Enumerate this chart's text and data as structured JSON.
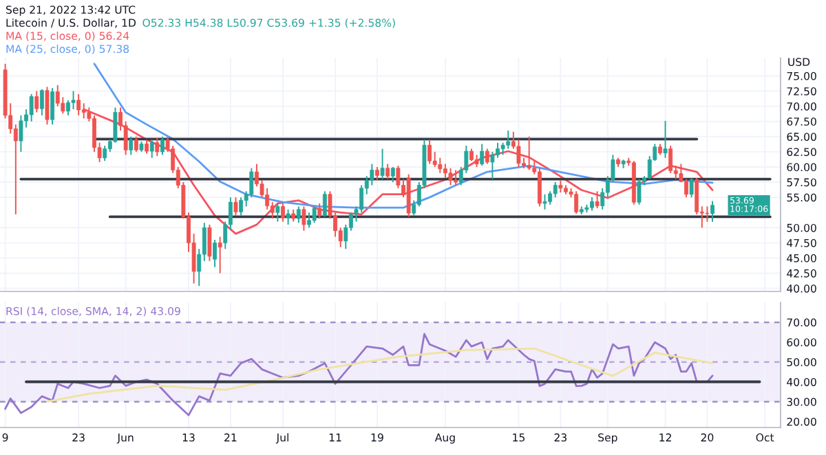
{
  "chart_data": [
    {
      "type": "candlestick",
      "title": "Litecoin / U.S. Dollar, 1D",
      "subtitle": "O52.33 H54.38 L50.97 C53.69 +1.35 (+2.58%)",
      "ylabel": "USD",
      "legend": "top left",
      "tick_labels": "y",
      "grid": true,
      "annotations": [
        "Sep 21, 2022 13:42 UTC",
        {
          "text": "53.69\n10:17:06",
          "x": "2022-09-21",
          "y": 53.69
        }
      ],
      "xlim": [
        "2022-05-08",
        "2022-10-04"
      ],
      "xticks": [
        {
          "value": "2022-05-09",
          "label": null
        },
        {
          "value": "2022-05-23",
          "label": null
        },
        {
          "value": "2022-06-01",
          "label": null
        },
        {
          "value": "2022-06-13",
          "label": null
        },
        {
          "value": "2022-06-21",
          "label": null
        },
        {
          "value": "2022-07-01",
          "label": null
        },
        {
          "value": "2022-07-11",
          "label": null
        },
        {
          "value": "2022-07-19",
          "label": null
        },
        {
          "value": "2022-08-01",
          "label": null
        },
        {
          "value": "2022-08-15",
          "label": null
        },
        {
          "value": "2022-08-23",
          "label": null
        },
        {
          "value": "2022-09-01",
          "label": null
        },
        {
          "value": "2022-09-12",
          "label": null
        },
        {
          "value": "2022-09-20",
          "label": null
        },
        {
          "value": "2022-10-01",
          "label": null
        }
      ],
      "ylim": [
        39.5,
        78
      ],
      "yticks": [
        {
          "value": 40,
          "label": "40.00"
        },
        {
          "value": 42.5,
          "label": "42.50"
        },
        {
          "value": 45,
          "label": "45.00"
        },
        {
          "value": 47.5,
          "label": "47.50"
        },
        {
          "value": 50,
          "label": "50.00"
        },
        {
          "value": 55,
          "label": "55.00"
        },
        {
          "value": 57.5,
          "label": "57.50"
        },
        {
          "value": 60,
          "label": "60.00"
        },
        {
          "value": 62.5,
          "label": "62.50"
        },
        {
          "value": 65,
          "label": "65.00"
        },
        {
          "value": 67.5,
          "label": "67.50"
        },
        {
          "value": 70,
          "label": "70.00"
        },
        {
          "value": 72.5,
          "label": "72.50"
        },
        {
          "value": 75,
          "label": "75.00"
        }
      ],
      "x": [
        "2022-05-09",
        "2022-05-10",
        "2022-05-11",
        "2022-05-12",
        "2022-05-13",
        "2022-05-14",
        "2022-05-15",
        "2022-05-16",
        "2022-05-17",
        "2022-05-18",
        "2022-05-19",
        "2022-05-20",
        "2022-05-21",
        "2022-05-22",
        "2022-05-23",
        "2022-05-24",
        "2022-05-25",
        "2022-05-26",
        "2022-05-27",
        "2022-05-28",
        "2022-05-29",
        "2022-05-30",
        "2022-05-31",
        "2022-06-01",
        "2022-06-02",
        "2022-06-03",
        "2022-06-04",
        "2022-06-05",
        "2022-06-06",
        "2022-06-07",
        "2022-06-08",
        "2022-06-09",
        "2022-06-10",
        "2022-06-11",
        "2022-06-12",
        "2022-06-13",
        "2022-06-14",
        "2022-06-15",
        "2022-06-16",
        "2022-06-17",
        "2022-06-18",
        "2022-06-19",
        "2022-06-20",
        "2022-06-21",
        "2022-06-22",
        "2022-06-23",
        "2022-06-24",
        "2022-06-25",
        "2022-06-26",
        "2022-06-27",
        "2022-06-28",
        "2022-06-29",
        "2022-06-30",
        "2022-07-01",
        "2022-07-02",
        "2022-07-03",
        "2022-07-04",
        "2022-07-05",
        "2022-07-06",
        "2022-07-07",
        "2022-07-08",
        "2022-07-09",
        "2022-07-10",
        "2022-07-11",
        "2022-07-12",
        "2022-07-13",
        "2022-07-14",
        "2022-07-15",
        "2022-07-16",
        "2022-07-17",
        "2022-07-18",
        "2022-07-19",
        "2022-07-20",
        "2022-07-21",
        "2022-07-22",
        "2022-07-23",
        "2022-07-24",
        "2022-07-25",
        "2022-07-26",
        "2022-07-27",
        "2022-07-28",
        "2022-07-29",
        "2022-07-30",
        "2022-07-31",
        "2022-08-01",
        "2022-08-02",
        "2022-08-03",
        "2022-08-04",
        "2022-08-05",
        "2022-08-06",
        "2022-08-07",
        "2022-08-08",
        "2022-08-09",
        "2022-08-10",
        "2022-08-11",
        "2022-08-12",
        "2022-08-13",
        "2022-08-14",
        "2022-08-15",
        "2022-08-16",
        "2022-08-17",
        "2022-08-18",
        "2022-08-19",
        "2022-08-20",
        "2022-08-21",
        "2022-08-22",
        "2022-08-23",
        "2022-08-24",
        "2022-08-25",
        "2022-08-26",
        "2022-08-27",
        "2022-08-28",
        "2022-08-29",
        "2022-08-30",
        "2022-08-31",
        "2022-09-01",
        "2022-09-02",
        "2022-09-03",
        "2022-09-04",
        "2022-09-05",
        "2022-09-06",
        "2022-09-07",
        "2022-09-08",
        "2022-09-09",
        "2022-09-10",
        "2022-09-11",
        "2022-09-12",
        "2022-09-13",
        "2022-09-14",
        "2022-09-15",
        "2022-09-16",
        "2022-09-17",
        "2022-09-18",
        "2022-09-19",
        "2022-09-20",
        "2022-09-21"
      ],
      "ohlc": [
        [
          76.0,
          77.0,
          68.0,
          68.5
        ],
        [
          68.5,
          70.5,
          65.5,
          66.3
        ],
        [
          66.3,
          67.0,
          52.2,
          64.3
        ],
        [
          64.3,
          68.5,
          62.5,
          67.6
        ],
        [
          67.6,
          69.5,
          66.5,
          68.6
        ],
        [
          68.6,
          72.0,
          67.5,
          71.6
        ],
        [
          71.6,
          72.5,
          69.0,
          69.6
        ],
        [
          69.6,
          72.8,
          68.5,
          72.6
        ],
        [
          72.6,
          73.2,
          67.0,
          67.8
        ],
        [
          67.8,
          73.0,
          67.0,
          72.4
        ],
        [
          72.4,
          73.5,
          70.0,
          70.5
        ],
        [
          70.5,
          71.5,
          68.8,
          69.2
        ],
        [
          69.2,
          71.0,
          68.5,
          70.6
        ],
        [
          70.6,
          72.5,
          69.5,
          71.0
        ],
        [
          71.0,
          72.0,
          68.5,
          69.4
        ],
        [
          69.4,
          70.5,
          68.0,
          69.0
        ],
        [
          69.0,
          69.8,
          67.5,
          68.0
        ],
        [
          68.0,
          68.5,
          62.5,
          63.2
        ],
        [
          63.2,
          64.0,
          60.8,
          61.5
        ],
        [
          61.5,
          63.5,
          61.0,
          63.0
        ],
        [
          63.0,
          64.5,
          62.5,
          64.2
        ],
        [
          64.2,
          69.8,
          64.0,
          69.0
        ],
        [
          69.0,
          69.8,
          66.0,
          66.8
        ],
        [
          66.8,
          67.5,
          62.0,
          62.8
        ],
        [
          62.8,
          65.0,
          62.0,
          64.5
        ],
        [
          64.5,
          65.0,
          62.5,
          62.8
        ],
        [
          62.8,
          64.2,
          62.5,
          63.8
        ],
        [
          63.8,
          64.5,
          62.2,
          62.6
        ],
        [
          62.6,
          64.5,
          61.5,
          64.0
        ],
        [
          64.0,
          64.8,
          61.8,
          62.5
        ],
        [
          62.5,
          65.0,
          62.0,
          64.5
        ],
        [
          64.5,
          65.0,
          62.5,
          63.0
        ],
        [
          63.0,
          63.5,
          59.0,
          59.5
        ],
        [
          59.5,
          60.0,
          56.5,
          57.0
        ],
        [
          57.0,
          57.5,
          51.5,
          51.8
        ],
        [
          51.8,
          52.5,
          46.0,
          47.5
        ],
        [
          47.5,
          49.0,
          40.8,
          42.8
        ],
        [
          42.8,
          46.5,
          40.4,
          45.6
        ],
        [
          45.6,
          50.8,
          44.5,
          50.0
        ],
        [
          50.0,
          50.5,
          44.5,
          45.3
        ],
        [
          44.8,
          48.0,
          43.5,
          47.5
        ],
        [
          47.5,
          48.5,
          42.5,
          46.8
        ],
        [
          47.5,
          51.0,
          46.5,
          50.5
        ],
        [
          50.5,
          55.0,
          49.8,
          54.2
        ],
        [
          54.2,
          55.0,
          52.0,
          52.6
        ],
        [
          52.6,
          55.0,
          52.0,
          54.5
        ],
        [
          54.5,
          56.0,
          53.5,
          55.5
        ],
        [
          55.5,
          59.8,
          55.0,
          59.2
        ],
        [
          59.2,
          60.5,
          56.8,
          57.2
        ],
        [
          57.2,
          57.8,
          55.0,
          55.4
        ],
        [
          55.4,
          56.5,
          53.0,
          53.6
        ],
        [
          53.6,
          54.2,
          51.5,
          52.5
        ],
        [
          52.5,
          54.0,
          51.0,
          53.5
        ],
        [
          53.5,
          54.0,
          51.0,
          51.6
        ],
        [
          51.6,
          53.0,
          50.5,
          52.3
        ],
        [
          52.3,
          53.0,
          51.0,
          51.5
        ],
        [
          51.5,
          53.5,
          50.8,
          53.0
        ],
        [
          53.0,
          53.5,
          49.5,
          50.5
        ],
        [
          50.5,
          52.5,
          50.0,
          51.2
        ],
        [
          51.2,
          53.5,
          50.8,
          53.2
        ],
        [
          53.2,
          54.0,
          51.5,
          52.0
        ],
        [
          52.0,
          56.0,
          51.8,
          55.5
        ],
        [
          55.5,
          56.0,
          51.5,
          52.0
        ],
        [
          52.0,
          52.5,
          48.5,
          49.5
        ],
        [
          49.5,
          50.0,
          46.8,
          47.8
        ],
        [
          47.8,
          50.5,
          46.5,
          50.0
        ],
        [
          50.0,
          52.5,
          49.5,
          52.2
        ],
        [
          52.2,
          53.5,
          51.0,
          53.0
        ],
        [
          53.0,
          57.0,
          52.5,
          56.5
        ],
        [
          56.5,
          58.5,
          55.5,
          57.8
        ],
        [
          57.8,
          60.5,
          57.0,
          59.5
        ],
        [
          59.5,
          60.0,
          57.8,
          58.6
        ],
        [
          58.6,
          63.0,
          58.0,
          59.8
        ],
        [
          59.8,
          60.5,
          58.0,
          58.5
        ],
        [
          58.5,
          60.0,
          57.5,
          59.8
        ],
        [
          59.8,
          60.2,
          56.5,
          57.0
        ],
        [
          57.0,
          58.0,
          55.0,
          55.4
        ],
        [
          58.2,
          58.8,
          51.8,
          52.4
        ],
        [
          52.4,
          54.5,
          52.0,
          53.8
        ],
        [
          53.8,
          57.5,
          53.5,
          57.0
        ],
        [
          57.0,
          64.5,
          56.5,
          63.6
        ],
        [
          63.6,
          64.5,
          60.5,
          61.0
        ],
        [
          61.0,
          62.5,
          60.0,
          60.4
        ],
        [
          60.4,
          61.5,
          59.0,
          59.7
        ],
        [
          59.7,
          60.5,
          58.2,
          59.0
        ],
        [
          59.0,
          59.8,
          57.0,
          57.8
        ],
        [
          57.8,
          59.5,
          57.0,
          57.5
        ],
        [
          57.5,
          60.0,
          57.0,
          59.5
        ],
        [
          59.5,
          63.5,
          59.0,
          62.6
        ],
        [
          62.6,
          63.0,
          61.0,
          61.2
        ],
        [
          61.2,
          62.0,
          60.0,
          60.5
        ],
        [
          60.5,
          63.8,
          60.2,
          62.6
        ],
        [
          62.6,
          63.0,
          60.5,
          60.8
        ],
        [
          60.8,
          62.5,
          58.0,
          62.0
        ],
        [
          62.0,
          64.0,
          61.5,
          63.0
        ],
        [
          63.0,
          64.0,
          62.0,
          63.6
        ],
        [
          63.6,
          66.0,
          63.0,
          64.2
        ],
        [
          64.2,
          65.8,
          63.0,
          63.4
        ],
        [
          63.4,
          64.5,
          60.0,
          60.6
        ],
        [
          60.6,
          61.5,
          59.8,
          60.2
        ],
        [
          60.2,
          65.0,
          59.5,
          59.8
        ],
        [
          59.8,
          61.0,
          58.8,
          59.2
        ],
        [
          59.2,
          59.8,
          53.5,
          54.0
        ],
        [
          54.0,
          55.5,
          53.0,
          54.3
        ],
        [
          54.3,
          56.0,
          53.8,
          55.6
        ],
        [
          55.6,
          57.5,
          55.0,
          57.0
        ],
        [
          57.0,
          57.8,
          55.8,
          56.5
        ],
        [
          56.5,
          57.0,
          55.5,
          55.9
        ],
        [
          55.9,
          56.5,
          55.0,
          55.5
        ],
        [
          55.5,
          56.0,
          52.3,
          52.6
        ],
        [
          52.6,
          53.5,
          52.2,
          53.0
        ],
        [
          53.0,
          53.8,
          52.5,
          53.3
        ],
        [
          53.3,
          55.0,
          52.8,
          54.3
        ],
        [
          54.3,
          56.0,
          53.2,
          53.6
        ],
        [
          53.6,
          56.5,
          53.0,
          55.8
        ],
        [
          55.8,
          58.5,
          55.0,
          57.9
        ],
        [
          57.9,
          62.0,
          57.5,
          61.2
        ],
        [
          61.2,
          61.5,
          60.0,
          60.5
        ],
        [
          60.5,
          61.2,
          59.8,
          61.0
        ],
        [
          61.0,
          61.5,
          60.2,
          60.7
        ],
        [
          60.7,
          61.0,
          53.8,
          54.2
        ],
        [
          54.2,
          58.0,
          53.8,
          57.6
        ],
        [
          57.6,
          58.5,
          57.0,
          58.2
        ],
        [
          58.2,
          61.8,
          58.0,
          61.2
        ],
        [
          61.2,
          63.8,
          61.0,
          63.3
        ],
        [
          63.3,
          63.8,
          62.0,
          62.3
        ],
        [
          62.3,
          67.6,
          61.5,
          63.0
        ],
        [
          63.0,
          63.5,
          59.0,
          59.4
        ],
        [
          59.4,
          60.2,
          58.0,
          58.9
        ],
        [
          58.9,
          60.5,
          57.5,
          57.6
        ],
        [
          57.6,
          58.0,
          55.0,
          55.5
        ],
        [
          55.5,
          58.2,
          55.0,
          57.9
        ],
        [
          57.9,
          58.2,
          52.2,
          52.6
        ],
        [
          52.6,
          53.5,
          50.0,
          52.4
        ],
        [
          52.4,
          53.5,
          51.0,
          52.33
        ],
        [
          52.33,
          54.38,
          50.97,
          53.69
        ]
      ],
      "colors": [
        "#ef5350",
        "#ef5350",
        "#ef5350",
        "#26a69a",
        "#26a69a",
        "#26a69a",
        "#ef5350",
        "#26a69a",
        "#ef5350",
        "#26a69a",
        "#ef5350",
        "#ef5350",
        "#26a69a",
        "#26a69a",
        "#ef5350",
        "#ef5350",
        "#ef5350",
        "#ef5350",
        "#ef5350",
        "#26a69a",
        "#26a69a",
        "#26a69a",
        "#ef5350",
        "#ef5350",
        "#26a69a",
        "#ef5350",
        "#26a69a",
        "#ef5350",
        "#26a69a",
        "#ef5350",
        "#26a69a",
        "#ef5350",
        "#ef5350",
        "#ef5350",
        "#ef5350",
        "#ef5350",
        "#ef5350",
        "#26a69a",
        "#26a69a",
        "#ef5350",
        "#26a69a",
        "#ef5350",
        "#26a69a",
        "#26a69a",
        "#ef5350",
        "#26a69a",
        "#26a69a",
        "#26a69a",
        "#ef5350",
        "#ef5350",
        "#ef5350",
        "#ef5350",
        "#26a69a",
        "#ef5350",
        "#26a69a",
        "#ef5350",
        "#26a69a",
        "#ef5350",
        "#26a69a",
        "#26a69a",
        "#ef5350",
        "#26a69a",
        "#ef5350",
        "#ef5350",
        "#ef5350",
        "#26a69a",
        "#26a69a",
        "#26a69a",
        "#26a69a",
        "#26a69a",
        "#26a69a",
        "#ef5350",
        "#26a69a",
        "#ef5350",
        "#26a69a",
        "#ef5350",
        "#ef5350",
        "#ef5350",
        "#26a69a",
        "#26a69a",
        "#26a69a",
        "#ef5350",
        "#ef5350",
        "#ef5350",
        "#ef5350",
        "#ef5350",
        "#ef5350",
        "#26a69a",
        "#26a69a",
        "#ef5350",
        "#ef5350",
        "#26a69a",
        "#ef5350",
        "#26a69a",
        "#26a69a",
        "#26a69a",
        "#26a69a",
        "#ef5350",
        "#ef5350",
        "#ef5350",
        "#ef5350",
        "#ef5350",
        "#ef5350",
        "#26a69a",
        "#26a69a",
        "#26a69a",
        "#ef5350",
        "#ef5350",
        "#ef5350",
        "#ef5350",
        "#26a69a",
        "#26a69a",
        "#26a69a",
        "#ef5350",
        "#26a69a",
        "#26a69a",
        "#26a69a",
        "#ef5350",
        "#26a69a",
        "#ef5350",
        "#ef5350",
        "#26a69a",
        "#26a69a",
        "#26a69a",
        "#26a69a",
        "#ef5350",
        "#26a69a",
        "#ef5350",
        "#ef5350",
        "#ef5350",
        "#ef5350",
        "#26a69a",
        "#ef5350",
        "#ef5350",
        "#ef5350",
        "#26a69a"
      ],
      "series": [
        {
          "type": "line",
          "name": "MA (15, close, 0) 56.24",
          "color": "#f7525f",
          "x": [
            "2022-05-24",
            "2022-05-31",
            "2022-06-05",
            "2022-06-10",
            "2022-06-14",
            "2022-06-18",
            "2022-06-22",
            "2022-06-26",
            "2022-06-30",
            "2022-07-04",
            "2022-07-08",
            "2022-07-12",
            "2022-07-16",
            "2022-07-20",
            "2022-07-24",
            "2022-08-01",
            "2022-08-08",
            "2022-08-13",
            "2022-08-17",
            "2022-08-22",
            "2022-08-27",
            "2022-09-01",
            "2022-09-08",
            "2022-09-13",
            "2022-09-18",
            "2022-09-21"
          ],
          "values": [
            69.5,
            67.0,
            64.5,
            62.5,
            57.0,
            52.0,
            49.0,
            50.5,
            54.0,
            54.5,
            53.0,
            52.5,
            52.2,
            55.5,
            55.5,
            57.9,
            61.5,
            62.6,
            61.6,
            59.0,
            56.2,
            54.9,
            57.6,
            60.2,
            59.2,
            56.2
          ]
        },
        {
          "type": "line",
          "name": "MA (25, close, 0) 57.38",
          "color": "#5b9cf6",
          "x": [
            "2022-05-26",
            "2022-06-01",
            "2022-06-05",
            "2022-06-10",
            "2022-06-15",
            "2022-06-19",
            "2022-06-24",
            "2022-07-01",
            "2022-07-08",
            "2022-07-15",
            "2022-07-24",
            "2022-07-29",
            "2022-08-03",
            "2022-08-09",
            "2022-08-17",
            "2022-08-24",
            "2022-09-01",
            "2022-09-08",
            "2022-09-14",
            "2022-09-21"
          ],
          "values": [
            77.0,
            69.0,
            67.0,
            64.6,
            60.9,
            57.6,
            55.5,
            54.2,
            53.5,
            53.3,
            53.3,
            55.0,
            57.0,
            59.2,
            60.2,
            59.0,
            57.6,
            57.2,
            57.9,
            57.4
          ]
        },
        {
          "type": "line",
          "color": "#363a45",
          "x": [
            "2022-05-26",
            "2022-09-18"
          ],
          "values": [
            64.6,
            64.6
          ]
        },
        {
          "type": "line",
          "color": "#363a45",
          "x": [
            "2022-05-12",
            "2022-10-02"
          ],
          "values": [
            58.0,
            58.0
          ]
        },
        {
          "type": "line",
          "color": "#363a45",
          "x": [
            "2022-05-29",
            "2022-10-02"
          ],
          "values": [
            51.8,
            51.8
          ]
        }
      ]
    },
    {
      "type": "line",
      "legend": "top left",
      "grid": "x",
      "xlim": [
        "2022-05-08",
        "2022-10-04"
      ],
      "xticks": [
        {
          "value": "2022-05-09",
          "label": "9"
        },
        {
          "value": "2022-05-23",
          "label": "23"
        },
        {
          "value": "2022-06-01",
          "label": "Jun"
        },
        {
          "value": "2022-06-13",
          "label": "13"
        },
        {
          "value": "2022-06-21",
          "label": "21"
        },
        {
          "value": "2022-07-01",
          "label": "Jul"
        },
        {
          "value": "2022-07-11",
          "label": "11"
        },
        {
          "value": "2022-07-19",
          "label": "19"
        },
        {
          "value": "2022-08-01",
          "label": "Aug"
        },
        {
          "value": "2022-08-15",
          "label": "15"
        },
        {
          "value": "2022-08-23",
          "label": "23"
        },
        {
          "value": "2022-09-01",
          "label": "Sep"
        },
        {
          "value": "2022-09-12",
          "label": "12"
        },
        {
          "value": "2022-09-20",
          "label": "20"
        },
        {
          "value": "2022-10-01",
          "label": "Oct"
        }
      ],
      "ylim": [
        17,
        80
      ],
      "yticks": [
        {
          "value": 20,
          "label": "20.00"
        },
        {
          "value": 30,
          "label": "30.00"
        },
        {
          "value": 40,
          "label": "40.00"
        },
        {
          "value": 50,
          "label": "50.00"
        },
        {
          "value": 60,
          "label": "60.00"
        },
        {
          "value": 70,
          "label": "70.00"
        }
      ],
      "bands": [
        {
          "axis": "y",
          "from": 30,
          "to": 70,
          "color": "#f1edfa"
        }
      ],
      "ref_lines": [
        {
          "axis": "y",
          "value": 70,
          "color": "#9d90c8",
          "line_style": "dashed"
        },
        {
          "axis": "y",
          "value": 50,
          "color": "#b7acd8",
          "line_style": "dashed"
        },
        {
          "axis": "y",
          "value": 30,
          "color": "#9d90c8",
          "line_style": "dashed"
        }
      ],
      "series": [
        {
          "type": "line",
          "name": "RSI (14, close, SMA, 14, 2) 43.09",
          "color": "#9575cd",
          "x": [
            "2022-05-09",
            "2022-05-10",
            "2022-05-12",
            "2022-05-14",
            "2022-05-16",
            "2022-05-18",
            "2022-05-19",
            "2022-05-21",
            "2022-05-22",
            "2022-05-24",
            "2022-05-27",
            "2022-05-29",
            "2022-05-30",
            "2022-06-01",
            "2022-06-03",
            "2022-06-05",
            "2022-06-07",
            "2022-06-10",
            "2022-06-13",
            "2022-06-15",
            "2022-06-17",
            "2022-06-19",
            "2022-06-21",
            "2022-06-23",
            "2022-06-25",
            "2022-06-27",
            "2022-06-29",
            "2022-07-01",
            "2022-07-04",
            "2022-07-06",
            "2022-07-09",
            "2022-07-11",
            "2022-07-14",
            "2022-07-17",
            "2022-07-20",
            "2022-07-22",
            "2022-07-24",
            "2022-07-25",
            "2022-07-27",
            "2022-07-28",
            "2022-07-29",
            "2022-08-01",
            "2022-08-03",
            "2022-08-05",
            "2022-08-06",
            "2022-08-08",
            "2022-08-09",
            "2022-08-10",
            "2022-08-12",
            "2022-08-13",
            "2022-08-16",
            "2022-08-17",
            "2022-08-18",
            "2022-08-19",
            "2022-08-20",
            "2022-08-22",
            "2022-08-24",
            "2022-08-25",
            "2022-08-26",
            "2022-08-27",
            "2022-08-28",
            "2022-08-29",
            "2022-08-30",
            "2022-08-31",
            "2022-09-02",
            "2022-09-03",
            "2022-09-05",
            "2022-09-06",
            "2022-09-07",
            "2022-09-08",
            "2022-09-10",
            "2022-09-12",
            "2022-09-13",
            "2022-09-14",
            "2022-09-15",
            "2022-09-16",
            "2022-09-17",
            "2022-09-18",
            "2022-09-19",
            "2022-09-20",
            "2022-09-21"
          ],
          "values": [
            26.4,
            31.6,
            24.3,
            27.4,
            32.7,
            30.6,
            39.0,
            36.9,
            40.0,
            39.0,
            36.9,
            38.0,
            43.1,
            38.0,
            40.0,
            41.1,
            39.0,
            30.6,
            23.2,
            32.7,
            30.6,
            44.2,
            43.1,
            49.4,
            51.5,
            46.3,
            44.2,
            42.1,
            43.1,
            45.2,
            49.4,
            39.0,
            48.4,
            57.8,
            56.8,
            53.6,
            57.8,
            48.4,
            48.4,
            64.1,
            58.9,
            55.7,
            52.6,
            61.0,
            57.8,
            59.9,
            51.5,
            56.8,
            57.8,
            61.0,
            53.6,
            51.5,
            50.5,
            37.9,
            39.0,
            46.3,
            45.2,
            45.2,
            37.9,
            38.0,
            39.0,
            46.3,
            42.1,
            44.2,
            58.9,
            56.8,
            57.8,
            43.1,
            49.4,
            51.5,
            59.9,
            56.8,
            51.5,
            53.6,
            45.2,
            45.2,
            49.4,
            40.0,
            40.0,
            40.0,
            43.1
          ]
        },
        {
          "type": "line",
          "color": "#f0e3a0",
          "x": [
            "2022-05-17",
            "2022-05-25",
            "2022-06-07",
            "2022-06-20",
            "2022-07-01",
            "2022-07-08",
            "2022-07-23",
            "2022-08-05",
            "2022-08-18",
            "2022-08-27",
            "2022-09-02",
            "2022-09-10",
            "2022-09-21"
          ],
          "values": [
            30.0,
            34.0,
            38.0,
            36.0,
            42.0,
            46.3,
            52.6,
            56.0,
            56.8,
            48.4,
            43.0,
            54.7,
            49.4
          ]
        },
        {
          "type": "line",
          "color": "#363a45",
          "x": [
            "2022-05-13",
            "2022-09-30"
          ],
          "values": [
            40.0,
            40.0
          ]
        }
      ]
    }
  ]
}
